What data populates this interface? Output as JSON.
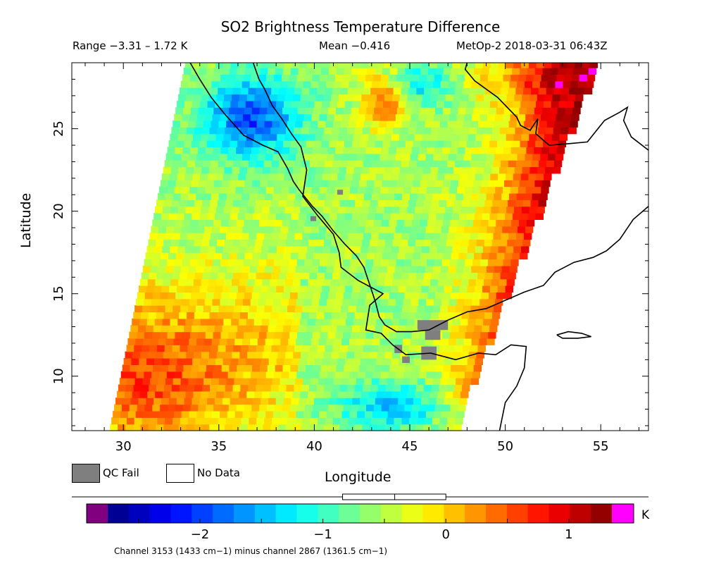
{
  "title": "SO2 Brightness Temperature Difference",
  "header": {
    "range": "Range −3.31 – 1.72 K",
    "mean": "Mean −0.416",
    "satellite_time": "MetOp-2 2018-03-31 06:43Z"
  },
  "axes": {
    "xlabel": "Longitude",
    "ylabel": "Latitude",
    "x_ticks": [
      30,
      35,
      40,
      45,
      50,
      55
    ],
    "y_ticks": [
      10,
      15,
      20,
      25
    ],
    "xlim": [
      27.3,
      57.5
    ],
    "ylim": [
      6.7,
      29.0
    ]
  },
  "legend": {
    "qc_fail": "QC Fail",
    "no_data": "No Data",
    "qc_color": "#7f7f7f"
  },
  "colorbar": {
    "unit": "K",
    "ticks": [
      "−2",
      "−1",
      "0",
      "1"
    ],
    "tick_values": [
      -2,
      -1,
      0,
      1
    ],
    "range": [
      -2.75,
      1.35
    ],
    "under_color": "#800080",
    "over_color": "#ff00ff",
    "stops": [
      "#00007f",
      "#0000ff",
      "#0080ff",
      "#00ffff",
      "#80ff80",
      "#ffff00",
      "#ff8000",
      "#ff0000",
      "#7f0000"
    ],
    "mean_marker": -0.416,
    "box_range": [
      -0.84,
      0.0
    ]
  },
  "caption": "Channel 3153 (1433 cm−1) minus channel 2867 (1361.5 cm−1)",
  "map_data": {
    "coastlines": [
      [
        [
          33.5,
          29.0
        ],
        [
          34.0,
          28.0
        ],
        [
          34.6,
          26.9
        ],
        [
          35.3,
          25.9
        ],
        [
          36.3,
          24.6
        ],
        [
          37.3,
          24.0
        ],
        [
          38.1,
          23.6
        ],
        [
          38.6,
          22.6
        ],
        [
          38.9,
          21.8
        ],
        [
          39.2,
          21.3
        ],
        [
          39.9,
          20.3
        ],
        [
          40.4,
          19.7
        ],
        [
          41.0,
          18.8
        ],
        [
          41.6,
          18.0
        ],
        [
          42.2,
          17.3
        ],
        [
          42.6,
          16.6
        ],
        [
          42.8,
          15.9
        ],
        [
          43.0,
          15.2
        ],
        [
          43.2,
          14.5
        ],
        [
          43.4,
          13.6
        ],
        [
          43.7,
          13.1
        ],
        [
          44.3,
          12.7
        ],
        [
          45.1,
          12.7
        ],
        [
          46.0,
          12.8
        ],
        [
          47.0,
          13.4
        ],
        [
          48.0,
          13.9
        ],
        [
          49.0,
          14.1
        ],
        [
          50.0,
          14.6
        ],
        [
          51.0,
          15.1
        ],
        [
          52.0,
          15.5
        ],
        [
          52.6,
          16.3
        ],
        [
          53.6,
          16.9
        ],
        [
          54.6,
          17.2
        ],
        [
          55.3,
          17.6
        ],
        [
          56.0,
          18.3
        ],
        [
          56.7,
          19.5
        ],
        [
          57.5,
          20.3
        ]
      ],
      [
        [
          36.8,
          29.0
        ],
        [
          37.1,
          28.0
        ],
        [
          37.4,
          27.4
        ],
        [
          37.8,
          26.4
        ],
        [
          38.3,
          25.6
        ],
        [
          38.8,
          24.7
        ],
        [
          39.3,
          23.9
        ],
        [
          39.6,
          22.5
        ],
        [
          39.4,
          20.9
        ],
        [
          40.2,
          19.7
        ],
        [
          41.0,
          18.6
        ],
        [
          41.3,
          17.5
        ],
        [
          41.4,
          16.6
        ],
        [
          42.3,
          15.8
        ],
        [
          43.6,
          15.0
        ],
        [
          42.9,
          14.3
        ],
        [
          42.7,
          12.8
        ],
        [
          43.5,
          12.6
        ],
        [
          44.1,
          11.9
        ],
        [
          44.8,
          11.3
        ],
        [
          46.1,
          11.4
        ],
        [
          47.4,
          11.0
        ],
        [
          48.6,
          11.4
        ],
        [
          49.5,
          11.3
        ],
        [
          50.3,
          11.9
        ],
        [
          51.1,
          11.8
        ],
        [
          51.0,
          10.5
        ],
        [
          50.6,
          9.4
        ],
        [
          50.0,
          8.4
        ],
        [
          49.7,
          6.7
        ]
      ],
      [
        [
          48.0,
          29.0
        ],
        [
          47.9,
          28.6
        ],
        [
          48.4,
          27.9
        ],
        [
          49.6,
          26.9
        ],
        [
          50.1,
          26.3
        ],
        [
          50.6,
          25.7
        ],
        [
          50.8,
          25.2
        ],
        [
          51.3,
          24.9
        ],
        [
          51.7,
          25.6
        ],
        [
          51.6,
          24.7
        ],
        [
          52.3,
          24.0
        ],
        [
          53.4,
          24.1
        ],
        [
          54.3,
          24.2
        ],
        [
          55.2,
          25.5
        ],
        [
          56.0,
          26.0
        ],
        [
          56.4,
          26.3
        ],
        [
          56.2,
          25.5
        ],
        [
          56.6,
          24.5
        ],
        [
          57.5,
          23.7
        ]
      ],
      [
        [
          52.7,
          12.5
        ],
        [
          53.3,
          12.7
        ],
        [
          54.0,
          12.6
        ],
        [
          54.5,
          12.4
        ],
        [
          53.8,
          12.3
        ],
        [
          53.0,
          12.3
        ],
        [
          52.7,
          12.5
        ]
      ]
    ]
  }
}
